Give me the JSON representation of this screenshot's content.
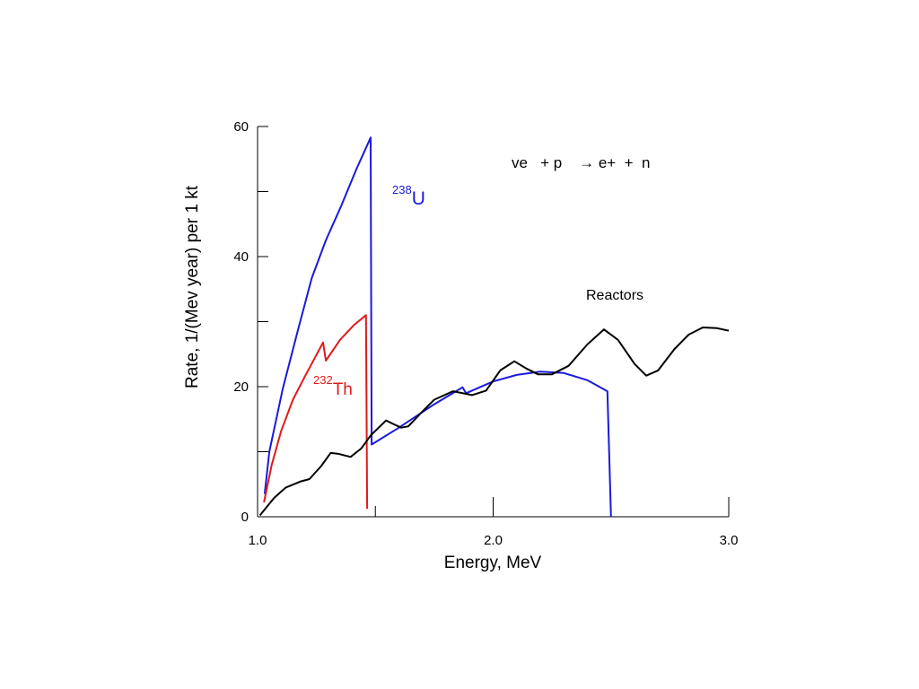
{
  "chart_data": {
    "type": "line",
    "title": "",
    "xlabel": "Energy, MeV",
    "ylabel": "Rate,  1/(Mev year) per 1 kt",
    "xlim": [
      1.0,
      3.0
    ],
    "ylim": [
      0,
      60
    ],
    "x_ticks": [
      {
        "value": 1.0,
        "label": "1.0"
      },
      {
        "value": 1.5,
        "label": ""
      },
      {
        "value": 2.0,
        "label": "2.0"
      },
      {
        "value": 2.5,
        "label": ""
      },
      {
        "value": 3.0,
        "label": "3.0"
      }
    ],
    "y_ticks": [
      {
        "value": 0,
        "label": "0"
      },
      {
        "value": 10,
        "label": ""
      },
      {
        "value": 20,
        "label": "20"
      },
      {
        "value": 30,
        "label": ""
      },
      {
        "value": 40,
        "label": "40"
      },
      {
        "value": 50,
        "label": ""
      },
      {
        "value": 60,
        "label": "60"
      }
    ],
    "grid": false,
    "reaction_label": "ve   + p    → e+  +  n",
    "series": [
      {
        "name": "238U",
        "label_sup": "238",
        "label_main": "U",
        "color": "#1a1adc",
        "points": [
          [
            1.03,
            3.5
          ],
          [
            1.05,
            10
          ],
          [
            1.107,
            19.7
          ],
          [
            1.17,
            28.5
          ],
          [
            1.23,
            36.7
          ],
          [
            1.29,
            42.5
          ],
          [
            1.354,
            47.7
          ],
          [
            1.42,
            53.5
          ],
          [
            1.48,
            58.3
          ],
          [
            1.484,
            11.1
          ],
          [
            1.6,
            13.7
          ],
          [
            1.75,
            17.3
          ],
          [
            1.87,
            19.9
          ],
          [
            1.885,
            19.0
          ],
          [
            2.0,
            20.8
          ],
          [
            2.1,
            21.8
          ],
          [
            2.2,
            22.3
          ],
          [
            2.3,
            22.1
          ],
          [
            2.4,
            21.0
          ],
          [
            2.485,
            19.3
          ],
          [
            2.5,
            0
          ]
        ]
      },
      {
        "name": "232Th",
        "label_sup": "232",
        "label_main": "Th",
        "color": "#e01a1a",
        "points": [
          [
            1.027,
            2.2
          ],
          [
            1.06,
            8
          ],
          [
            1.1,
            13.2
          ],
          [
            1.15,
            18
          ],
          [
            1.2,
            21.5
          ],
          [
            1.278,
            26.8
          ],
          [
            1.29,
            24
          ],
          [
            1.35,
            27.2
          ],
          [
            1.41,
            29.5
          ],
          [
            1.46,
            31
          ],
          [
            1.465,
            1.2
          ]
        ]
      },
      {
        "name": "Reactors",
        "color": "#000000",
        "points": [
          [
            1.01,
            0.2
          ],
          [
            1.07,
            2.9
          ],
          [
            1.12,
            4.5
          ],
          [
            1.18,
            5.4
          ],
          [
            1.22,
            5.8
          ],
          [
            1.27,
            7.8
          ],
          [
            1.31,
            9.8
          ],
          [
            1.34,
            9.7
          ],
          [
            1.395,
            9.2
          ],
          [
            1.44,
            10.5
          ],
          [
            1.48,
            12.5
          ],
          [
            1.545,
            14.8
          ],
          [
            1.58,
            14.2
          ],
          [
            1.61,
            13.7
          ],
          [
            1.64,
            13.9
          ],
          [
            1.7,
            16.2
          ],
          [
            1.75,
            18.0
          ],
          [
            1.83,
            19.3
          ],
          [
            1.91,
            18.7
          ],
          [
            1.97,
            19.4
          ],
          [
            2.03,
            22.5
          ],
          [
            2.09,
            23.9
          ],
          [
            2.14,
            22.8
          ],
          [
            2.19,
            21.9
          ],
          [
            2.25,
            21.9
          ],
          [
            2.32,
            23.2
          ],
          [
            2.4,
            26.5
          ],
          [
            2.47,
            28.8
          ],
          [
            2.53,
            27.2
          ],
          [
            2.6,
            23.5
          ],
          [
            2.65,
            21.7
          ],
          [
            2.7,
            22.5
          ],
          [
            2.77,
            25.8
          ],
          [
            2.83,
            28
          ],
          [
            2.89,
            29.1
          ],
          [
            2.95,
            29
          ],
          [
            3.0,
            28.6
          ]
        ]
      }
    ]
  }
}
